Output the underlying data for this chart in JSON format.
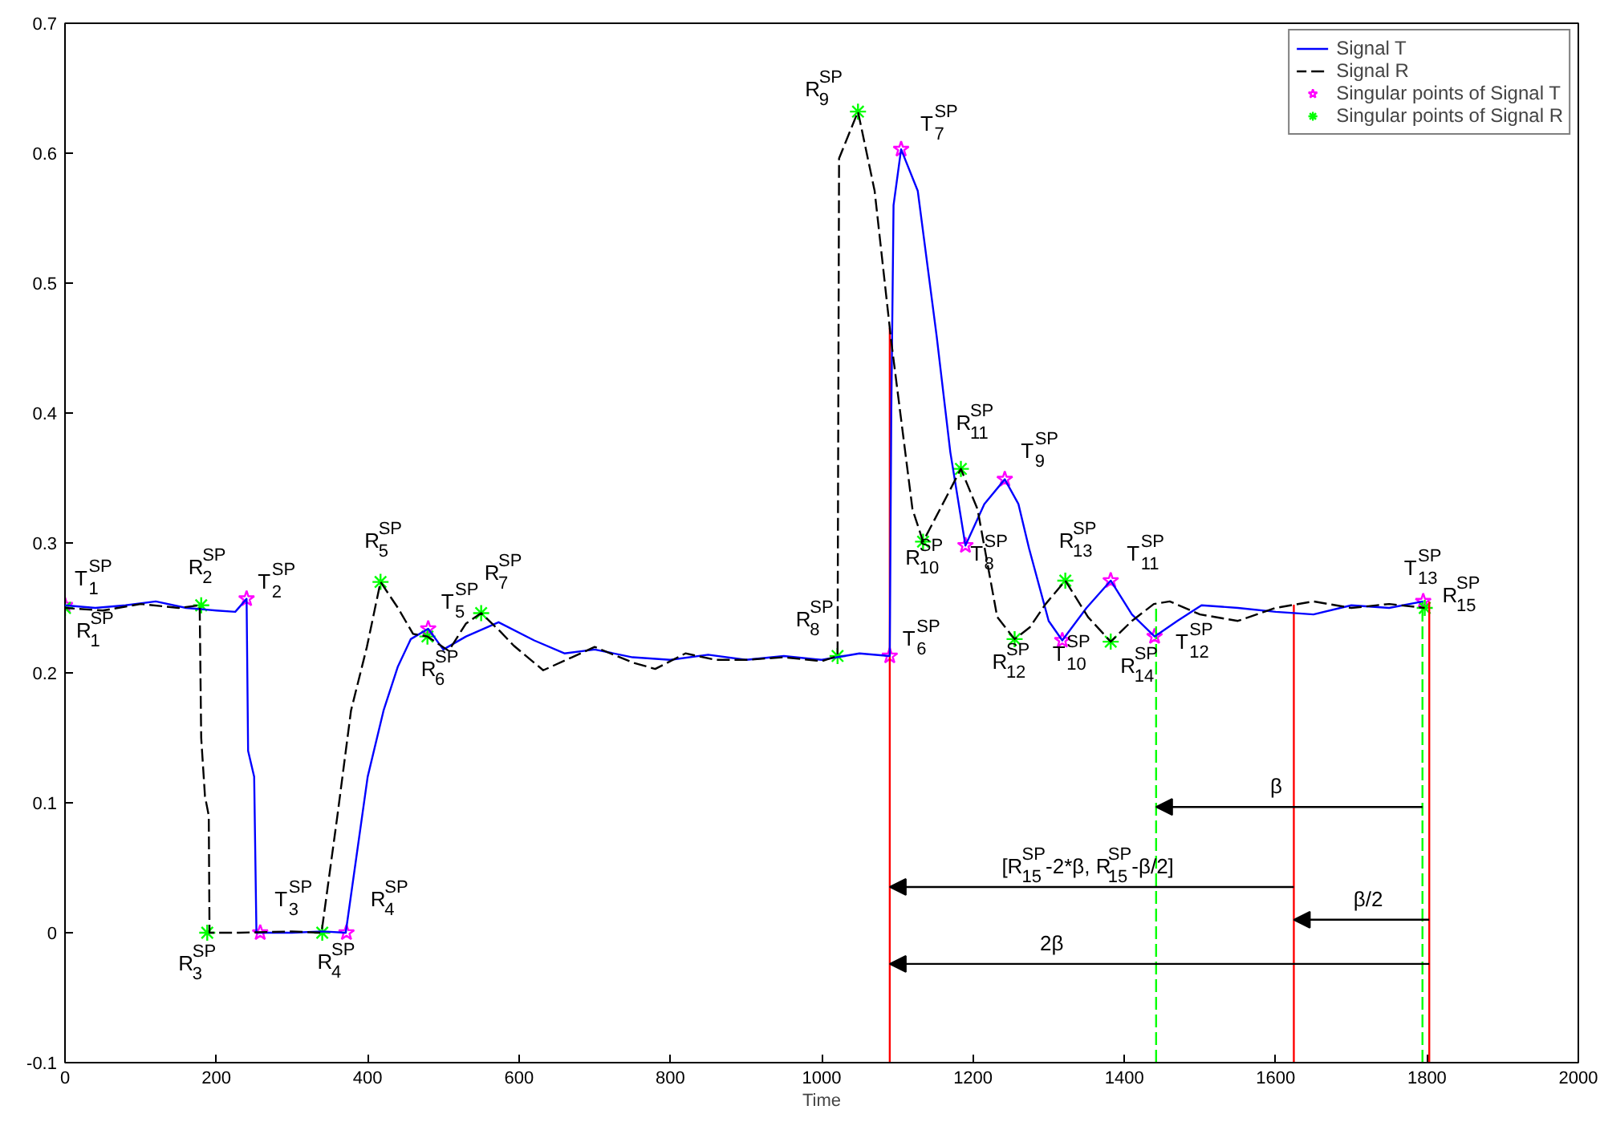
{
  "chart_data": {
    "type": "line",
    "xlabel": "Time",
    "xlim": [
      0,
      2000
    ],
    "ylim": [
      -0.1,
      0.7
    ],
    "xticks": [
      0,
      200,
      400,
      600,
      800,
      1000,
      1200,
      1400,
      1600,
      1800,
      2000
    ],
    "yticks": [
      -0.1,
      0,
      0.1,
      0.2,
      0.3,
      0.4,
      0.5,
      0.6,
      0.7
    ],
    "grid": false,
    "legend": "top right",
    "series": [
      {
        "name": "Signal T",
        "color": "#0000ff",
        "line_style": "solid",
        "x": [
          0,
          40,
          80,
          120,
          160,
          200,
          225,
          240,
          242,
          250,
          253,
          300,
          340,
          371,
          400,
          421,
          440,
          457,
          480,
          500,
          530,
          573,
          620,
          660,
          700,
          750,
          800,
          850,
          900,
          950,
          1000,
          1050,
          1090,
          1092,
          1095,
          1105,
          1127,
          1152,
          1170,
          1190,
          1215,
          1242,
          1260,
          1274,
          1300,
          1318,
          1350,
          1382,
          1410,
          1440,
          1470,
          1502,
          1550,
          1600,
          1650,
          1700,
          1750,
          1795
        ],
        "values": [
          0.252,
          0.25,
          0.252,
          0.255,
          0.25,
          0.248,
          0.247,
          0.257,
          0.14,
          0.12,
          0.0,
          0.0,
          0.001,
          0.0,
          0.12,
          0.171,
          0.205,
          0.226,
          0.234,
          0.218,
          0.228,
          0.239,
          0.225,
          0.215,
          0.218,
          0.212,
          0.21,
          0.214,
          0.21,
          0.213,
          0.21,
          0.215,
          0.213,
          0.4,
          0.56,
          0.603,
          0.571,
          0.459,
          0.37,
          0.298,
          0.33,
          0.349,
          0.33,
          0.296,
          0.24,
          0.225,
          0.25,
          0.271,
          0.245,
          0.228,
          0.24,
          0.252,
          0.25,
          0.247,
          0.245,
          0.252,
          0.25,
          0.255
        ]
      },
      {
        "name": "Signal R",
        "color": "#000000",
        "line_style": "dashed",
        "x": [
          0,
          50,
          100,
          150,
          178,
          180,
          185,
          190,
          191,
          230,
          300,
          339,
          360,
          378,
          399,
          417,
          440,
          460,
          479,
          507,
          530,
          550,
          575,
          593,
          632,
          670,
          700,
          750,
          780,
          820,
          860,
          900,
          950,
          1000,
          1021,
          1023,
          1048,
          1070,
          1092,
          1120,
          1134,
          1160,
          1184,
          1206,
          1232,
          1255,
          1275,
          1296,
          1322,
          1352,
          1382,
          1410,
          1439,
          1460,
          1500,
          1550,
          1600,
          1650,
          1700,
          1750,
          1797
        ],
        "values": [
          0.25,
          0.248,
          0.253,
          0.25,
          0.252,
          0.15,
          0.105,
          0.09,
          0.0,
          0.0,
          0.001,
          0.0,
          0.09,
          0.171,
          0.22,
          0.27,
          0.25,
          0.23,
          0.228,
          0.217,
          0.238,
          0.246,
          0.232,
          0.221,
          0.202,
          0.212,
          0.22,
          0.208,
          0.203,
          0.215,
          0.21,
          0.21,
          0.212,
          0.209,
          0.213,
          0.596,
          0.632,
          0.571,
          0.455,
          0.326,
          0.301,
          0.33,
          0.357,
          0.326,
          0.243,
          0.226,
          0.235,
          0.253,
          0.271,
          0.243,
          0.224,
          0.24,
          0.253,
          0.255,
          0.245,
          0.24,
          0.25,
          0.255,
          0.25,
          0.253,
          0.25
        ]
      },
      {
        "name": "Singular points of Signal T",
        "type": "scatter",
        "color": "#ff00ff",
        "marker": "star",
        "x": [
          0,
          240,
          258,
          372,
          480,
          1090,
          1105,
          1190,
          1242,
          1318,
          1382,
          1440,
          1795
        ],
        "values": [
          0.252,
          0.257,
          0.0,
          0.0,
          0.234,
          0.213,
          0.603,
          0.298,
          0.349,
          0.225,
          0.271,
          0.228,
          0.255
        ]
      },
      {
        "name": "Singular points of Signal R",
        "type": "scatter",
        "color": "#00ff00",
        "marker": "cross",
        "x": [
          0,
          180,
          188,
          340,
          417,
          479,
          550,
          1021,
          1048,
          1134,
          1184,
          1255,
          1322,
          1382,
          1797
        ],
        "values": [
          0.25,
          0.252,
          0.0,
          0.0,
          0.27,
          0.228,
          0.246,
          0.213,
          0.632,
          0.301,
          0.357,
          0.226,
          0.271,
          0.224,
          0.25
        ]
      }
    ],
    "ref_lines": [
      {
        "axis": "x",
        "value": 1090,
        "color": "#ff0000",
        "line_style": "solid"
      },
      {
        "axis": "x",
        "value": 1624,
        "color": "#ff0000",
        "line_style": "solid"
      },
      {
        "axis": "x",
        "value": 1803,
        "color": "#ff0000",
        "line_style": "solid"
      },
      {
        "axis": "x",
        "value": 1442,
        "color": "#00ff00",
        "line_style": "dashed"
      },
      {
        "axis": "x",
        "value": 1794,
        "color": "#00ff00",
        "line_style": "dashed"
      }
    ],
    "annotations": [
      {
        "text": "T$^{SP}$$_{1}$",
        "x": 0,
        "y": 0.252
      },
      {
        "text": "T$^{SP}$$_{2}$",
        "x": 240,
        "y": 0.257
      },
      {
        "text": "T$^{SP}$$_{3}$",
        "x": 258,
        "y": 0.0
      },
      {
        "text": "R$^{SP}$$_{4}$",
        "x": 372,
        "y": 0.0
      },
      {
        "text": "T$^{SP}$$_{5}$",
        "x": 480,
        "y": 0.234
      },
      {
        "text": "T$^{SP}$$_{6}$",
        "x": 1090,
        "y": 0.213
      },
      {
        "text": "T$^{SP}$$_{7}$",
        "x": 1105,
        "y": 0.603
      },
      {
        "text": "T$^{SP}$$_{8}$",
        "x": 1190,
        "y": 0.298
      },
      {
        "text": "T$^{SP}$$_{9}$",
        "x": 1242,
        "y": 0.349
      },
      {
        "text": "T$^{SP}$$_{10}$",
        "x": 1318,
        "y": 0.225
      },
      {
        "text": "T$^{SP}$$_{11}$",
        "x": 1382,
        "y": 0.271
      },
      {
        "text": "T$^{SP}$$_{12}$",
        "x": 1440,
        "y": 0.228
      },
      {
        "text": "T$^{SP}$$_{13}$",
        "x": 1795,
        "y": 0.255
      },
      {
        "text": "R$^{SP}$$_{1}$",
        "x": 0,
        "y": 0.25
      },
      {
        "text": "R$^{SP}$$_{2}$",
        "x": 180,
        "y": 0.252
      },
      {
        "text": "R$^{SP}$$_{3}$",
        "x": 188,
        "y": 0.0
      },
      {
        "text": "R$^{SP}$$_{4}$",
        "x": 340,
        "y": 0.0
      },
      {
        "text": "R$^{SP}$$_{5}$",
        "x": 417,
        "y": 0.27
      },
      {
        "text": "R$^{SP}$$_{6}$",
        "x": 479,
        "y": 0.228
      },
      {
        "text": "R$^{SP}$$_{7}$",
        "x": 550,
        "y": 0.246
      },
      {
        "text": "R$^{SP}$$_{8}$",
        "x": 1021,
        "y": 0.213
      },
      {
        "text": "R$^{SP}$$_{9}$",
        "x": 1048,
        "y": 0.632
      },
      {
        "text": "R$^{SP}$$_{10}$",
        "x": 1134,
        "y": 0.301
      },
      {
        "text": "R$^{SP}$$_{11}$",
        "x": 1184,
        "y": 0.357
      },
      {
        "text": "R$^{SP}$$_{12}$",
        "x": 1255,
        "y": 0.226
      },
      {
        "text": "R$^{SP}$$_{13}$",
        "x": 1322,
        "y": 0.271
      },
      {
        "text": "R$^{SP}$$_{14}$",
        "x": 1382,
        "y": 0.224
      },
      {
        "text": "R$^{SP}$$_{15}$",
        "x": 1797,
        "y": 0.25
      },
      "β",
      "[R$^{SP}$$_{15}$-2*β, R$^{SP}$$_{15}$-β/2]",
      "β/2",
      "2β"
    ]
  }
}
